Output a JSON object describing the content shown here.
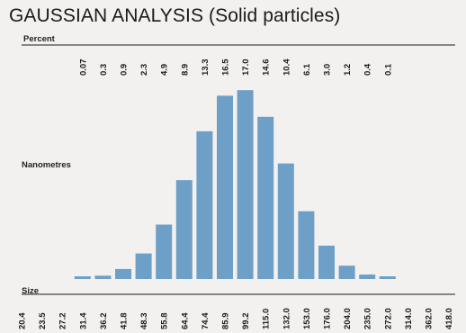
{
  "chart_data": {
    "type": "bar",
    "title": "GAUSSIAN ANALYSIS (Solid particles)",
    "top_axis_label": "Percent",
    "ylabel": "Nanometres",
    "xlabel": "Size",
    "percent_labels": [
      "0.07",
      "0.3",
      "0.9",
      "2.3",
      "4.9",
      "8.9",
      "13.3",
      "16.5",
      "17.0",
      "14.6",
      "10.4",
      "6.1",
      "3.0",
      "1.2",
      "0.4",
      "0.1"
    ],
    "values": [
      0.07,
      0.3,
      0.9,
      2.3,
      4.9,
      8.9,
      13.3,
      16.5,
      17.0,
      14.6,
      10.4,
      6.1,
      3.0,
      1.2,
      0.4,
      0.1
    ],
    "size_ticks": [
      "20.4",
      "23.5",
      "27.2",
      "31.4",
      "36.2",
      "41.8",
      "48.3",
      "55.8",
      "64.4",
      "74.4",
      "85.9",
      "99.2",
      "115.0",
      "132.0",
      "153.0",
      "176.0",
      "204.0",
      "235.0",
      "272.0",
      "314.0",
      "362.0",
      "418.0"
    ],
    "first_bar_tick_index": 3,
    "ylim": [
      0,
      17.5
    ],
    "grid": false,
    "legend": "none",
    "colors": {
      "bar": "#6e9fc6",
      "axis": "#1a1a1a",
      "background": "#f3f1ef"
    }
  }
}
